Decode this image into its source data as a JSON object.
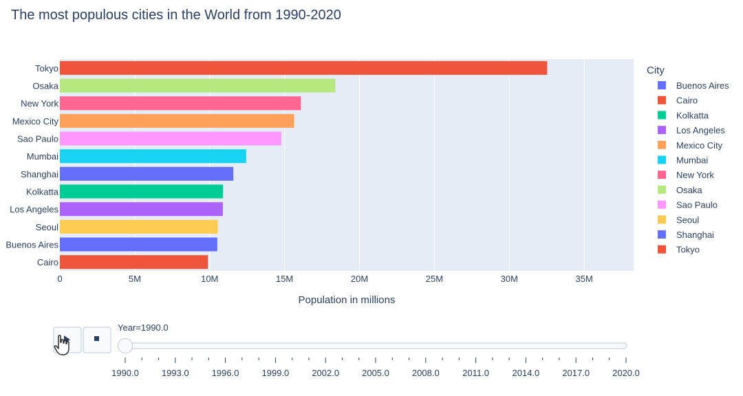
{
  "chart_data": {
    "type": "bar",
    "orientation": "horizontal",
    "title": "The most populous cities in the World from 1990-2020",
    "xlabel": "Population in millions",
    "ylabel": "",
    "xlim": [
      0,
      38300000
    ],
    "xticks": [
      0,
      5000000,
      10000000,
      15000000,
      20000000,
      25000000,
      30000000,
      35000000
    ],
    "xtick_labels": [
      "0",
      "5M",
      "10M",
      "15M",
      "20M",
      "25M",
      "30M",
      "35M"
    ],
    "categories": [
      "Tokyo",
      "Osaka",
      "New York",
      "Mexico City",
      "Sao Paulo",
      "Mumbai",
      "Shanghai",
      "Kolkatta",
      "Los Angeles",
      "Seoul",
      "Buenos Aires",
      "Cairo"
    ],
    "values": [
      32530000,
      18390000,
      16090000,
      15640000,
      14780000,
      12440000,
      11580000,
      10890000,
      10880000,
      10540000,
      10510000,
      9890000
    ],
    "colors": [
      "#EF553B",
      "#B6E880",
      "#FF6692",
      "#FFA15A",
      "#FF97FF",
      "#19D3F3",
      "#636EFA",
      "#00CC96",
      "#AB63FA",
      "#FECB52",
      "#636EFA",
      "#EF553B"
    ],
    "grid": true,
    "plot_background": "#E5ECF6",
    "legend": {
      "title": "City",
      "position": "right",
      "items": [
        {
          "name": "Buenos Aires",
          "color": "#636EFA"
        },
        {
          "name": "Cairo",
          "color": "#EF553B"
        },
        {
          "name": "Kolkatta",
          "color": "#00CC96"
        },
        {
          "name": "Los Angeles",
          "color": "#AB63FA"
        },
        {
          "name": "Mexico City",
          "color": "#FFA15A"
        },
        {
          "name": "Mumbai",
          "color": "#19D3F3"
        },
        {
          "name": "New York",
          "color": "#FF6692"
        },
        {
          "name": "Osaka",
          "color": "#B6E880"
        },
        {
          "name": "Sao Paulo",
          "color": "#FF97FF"
        },
        {
          "name": "Seoul",
          "color": "#FECB52"
        },
        {
          "name": "Shanghai",
          "color": "#636EFA"
        },
        {
          "name": "Tokyo",
          "color": "#EF553B"
        }
      ]
    }
  },
  "animation": {
    "play_icon": "play-icon",
    "stop_icon": "stop-icon",
    "cursor_icon": "hand-pointer-icon",
    "current_label": "Year=1990.0",
    "current_value": 1990.0,
    "range": [
      1990,
      2020
    ],
    "tick_labels": [
      "1990.0",
      "1993.0",
      "1996.0",
      "1999.0",
      "2002.0",
      "2005.0",
      "2008.0",
      "2011.0",
      "2014.0",
      "2017.0",
      "2020.0"
    ]
  }
}
